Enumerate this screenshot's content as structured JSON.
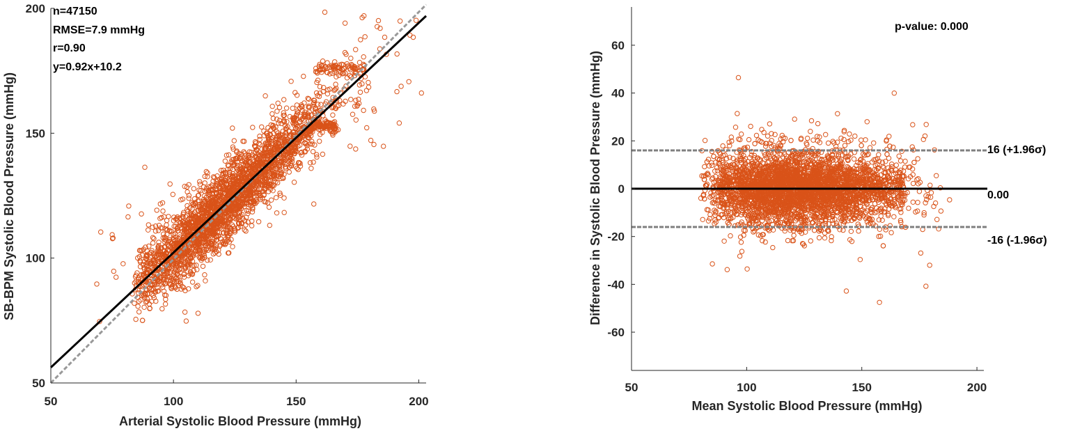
{
  "colors": {
    "points": "#D95319",
    "fit_line": "#000000",
    "identity_line": "#999999",
    "loa_line": "#7f7f7f",
    "axis": "#262626"
  },
  "chart_data": [
    {
      "type": "scatter",
      "title": "",
      "xlabel": "Arterial Systolic Blood Pressure (mmHg)",
      "ylabel": "SB-BPM Systolic Blood Pressure (mmHg)",
      "xlim": [
        50,
        203
      ],
      "ylim": [
        50,
        200
      ],
      "xticks": [
        50,
        100,
        150,
        200
      ],
      "yticks": [
        50,
        100,
        150,
        200
      ],
      "grid": false,
      "annotations": [
        "n=47150",
        "RMSE=7.9 mmHg",
        "r=0.90",
        "y=0.92x+10.2"
      ],
      "fit_line": {
        "slope": 0.92,
        "intercept": 10.2
      },
      "identity_line": {
        "slope": 1,
        "intercept": 0
      },
      "n": 47150,
      "point_cloud": {
        "x_range": [
          68,
          203
        ],
        "core_center": [
          120,
          120
        ],
        "residual_sd": 7.9
      }
    },
    {
      "type": "scatter",
      "title": "",
      "xlabel": "Mean Systolic Blood Pressure (mmHg)",
      "ylabel": "Difference in Systolic Blood Pressure (mmHg)",
      "xlim": [
        50,
        203
      ],
      "ylim": [
        -76,
        76
      ],
      "xticks": [
        50,
        100,
        150,
        200
      ],
      "yticks": [
        -60,
        -40,
        -20,
        0,
        20,
        40,
        60
      ],
      "grid": false,
      "annotations": [
        "p-value: 0.000"
      ],
      "lines": [
        {
          "y": 16,
          "label": "16 (+1.96σ)",
          "style": "dashed"
        },
        {
          "y": 0,
          "label": "0.00",
          "style": "solid"
        },
        {
          "y": -16,
          "label": "-16 (-1.96σ)",
          "style": "dashed"
        }
      ],
      "point_cloud": {
        "x_range": [
          80,
          195
        ],
        "y_range": [
          -50,
          47
        ]
      }
    }
  ]
}
